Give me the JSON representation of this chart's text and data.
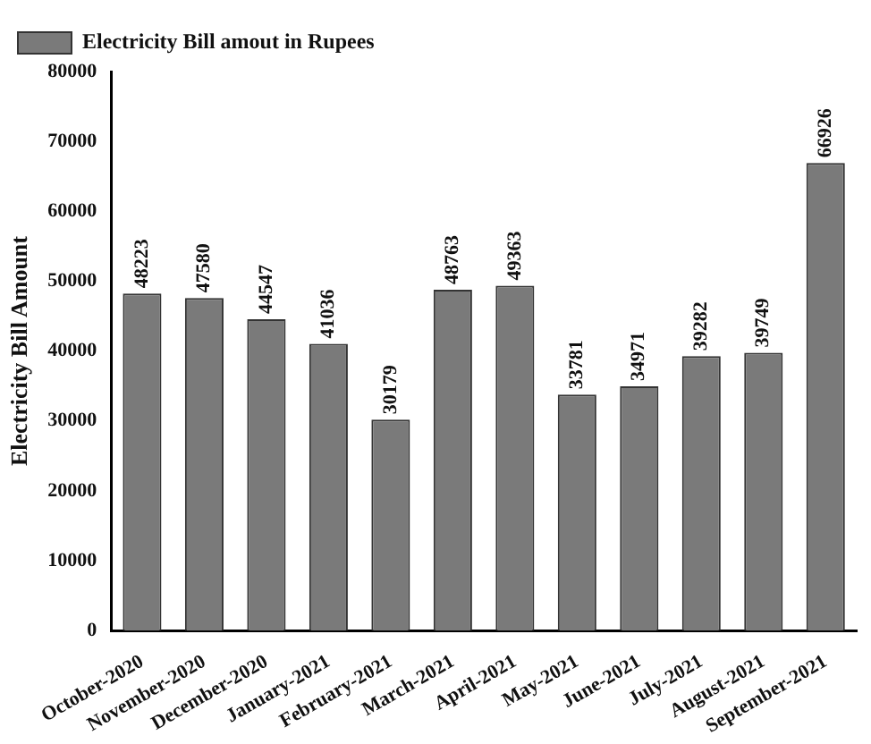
{
  "chart_data": {
    "type": "bar",
    "ylabel": "Electricity Bill Amount",
    "categories": [
      "October-2020",
      "November-2020",
      "December-2020",
      "January-2021",
      "February-2021",
      "March-2021",
      "April-2021",
      "May-2021",
      "June-2021",
      "July-2021",
      "August-2021",
      "September-2021"
    ],
    "series": [
      {
        "name": "Electricity Bill amout in Rupees",
        "color": "#7a7a7a",
        "values": [
          48223,
          47580,
          44547,
          41036,
          30179,
          48763,
          49363,
          33781,
          34971,
          39282,
          39749,
          66926
        ]
      }
    ],
    "ylim": [
      0,
      80000
    ],
    "yticks": [
      0,
      10000,
      20000,
      30000,
      40000,
      50000,
      60000,
      70000,
      80000
    ],
    "grid": false,
    "legend": "top left",
    "data_labels": true
  }
}
